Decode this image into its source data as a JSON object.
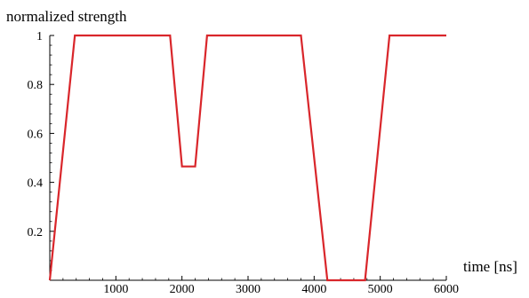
{
  "chart_data": {
    "type": "line",
    "title": "",
    "xlabel": "time [ns]",
    "ylabel": "normalized strength",
    "xlim": [
      0,
      6000
    ],
    "ylim": [
      0,
      1
    ],
    "x_ticks": [
      {
        "value": 1000,
        "label": "1000"
      },
      {
        "value": 2000,
        "label": "2000"
      },
      {
        "value": 3000,
        "label": "3000"
      },
      {
        "value": 4000,
        "label": "4000"
      },
      {
        "value": 5000,
        "label": "5000"
      },
      {
        "value": 6000,
        "label": "6000"
      }
    ],
    "y_ticks": [
      {
        "value": 0.2,
        "label": "0.2"
      },
      {
        "value": 0.4,
        "label": "0.4"
      },
      {
        "value": 0.6,
        "label": "0.6"
      },
      {
        "value": 0.8,
        "label": "0.8"
      },
      {
        "value": 1,
        "label": "1"
      }
    ],
    "grid": false,
    "series": [
      {
        "color": "#d9262b",
        "x": [
          0,
          380,
          1820,
          2000,
          2200,
          2380,
          3800,
          4200,
          4770,
          5140,
          6000
        ],
        "y": [
          0,
          1,
          1,
          0.465,
          0.465,
          1,
          1,
          0,
          0,
          1,
          1
        ]
      }
    ]
  }
}
